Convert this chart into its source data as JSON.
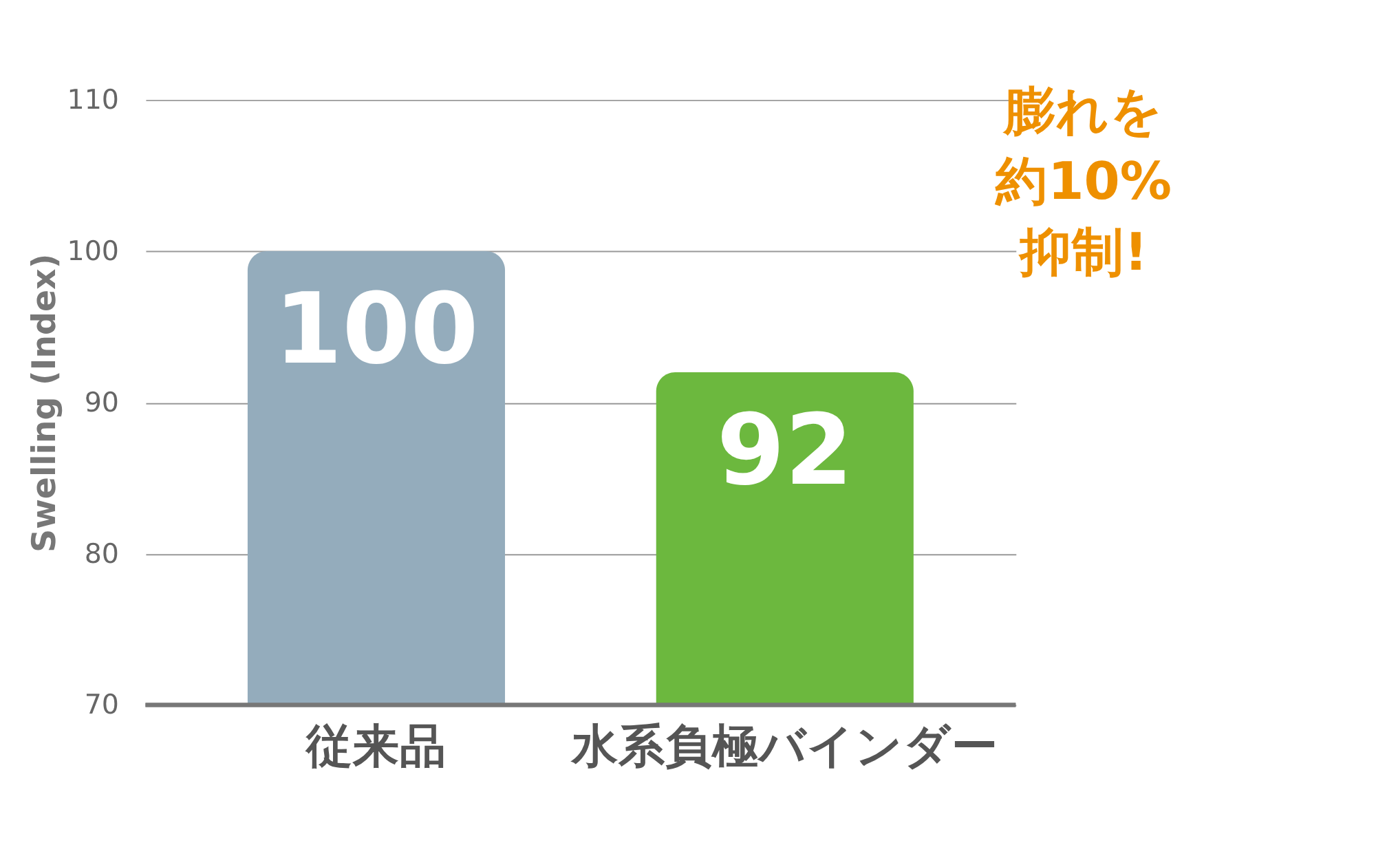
{
  "chart_data": {
    "type": "bar",
    "ylabel": "Swelling (Index)",
    "categories": [
      "従来品",
      "水系負極バインダー"
    ],
    "values": [
      100,
      92
    ],
    "colors": [
      "#94acbc",
      "#6cb83e"
    ],
    "ylim": [
      70,
      110
    ],
    "yticks": [
      70,
      80,
      90,
      100,
      110
    ],
    "grid": "y",
    "data_labels": true,
    "annotations": [
      "膨れを",
      "約10%",
      "抑制!"
    ]
  }
}
